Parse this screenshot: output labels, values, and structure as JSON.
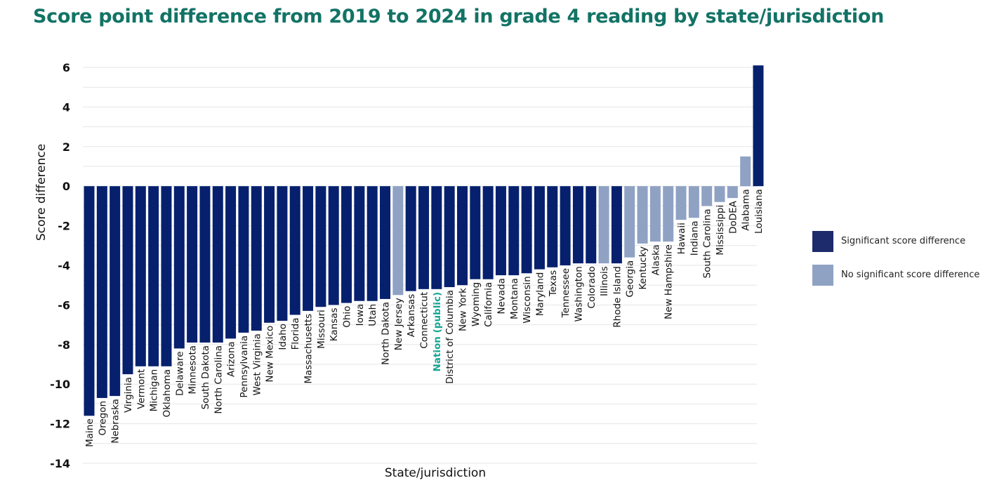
{
  "chart_data": {
    "type": "bar",
    "title": "Score point difference from 2019 to 2024 in grade 4 reading by state/jurisdiction",
    "xlabel": "State/jurisdiction",
    "ylabel": "Score difference",
    "ylim": [
      -14,
      6
    ],
    "yticks": [
      6,
      4,
      2,
      0,
      -2,
      -4,
      -6,
      -8,
      -10,
      -12,
      -14
    ],
    "grid": true,
    "legend_position": "right",
    "colors": {
      "significant": "#06206e",
      "not_significant": "#8fa2c4",
      "highlight_label": "#18a595"
    },
    "legend": [
      {
        "label": "Significant score difference",
        "key": "significant",
        "color": "#1d2a6b"
      },
      {
        "label": "No significant score difference",
        "key": "not_significant",
        "color": "#8fa2c4"
      }
    ],
    "categories": [
      "Maine",
      "Oregon",
      "Nebraska",
      "Virginia",
      "Vermont",
      "Michigan",
      "Oklahoma",
      "Delaware",
      "Minnesota",
      "South Dakota",
      "North Carolina",
      "Arizona",
      "Pennsylvania",
      "West Virginia",
      "New Mexico",
      "Idaho",
      "Florida",
      "Massachusetts",
      "Missouri",
      "Kansas",
      "Ohio",
      "Iowa",
      "Utah",
      "North Dakota",
      "New Jersey",
      "Arkansas",
      "Connecticut",
      "Nation (public)",
      "District of Columbia",
      "New York",
      "Wyoming",
      "California",
      "Nevada",
      "Montana",
      "Wisconsin",
      "Maryland",
      "Texas",
      "Tennessee",
      "Washington",
      "Colorado",
      "Illinois",
      "Rhode Island",
      "Georgia",
      "Kentucky",
      "Alaska",
      "New Hampshire",
      "Hawaii",
      "Indiana",
      "South Carolina",
      "Mississippi",
      "DoDEA",
      "Alabama",
      "Louisiana"
    ],
    "values": [
      -11.6,
      -10.7,
      -10.6,
      -9.5,
      -9.1,
      -9.1,
      -9.1,
      -8.2,
      -7.9,
      -7.9,
      -7.9,
      -7.7,
      -7.4,
      -7.3,
      -6.9,
      -6.8,
      -6.5,
      -6.3,
      -6.1,
      -6.0,
      -5.9,
      -5.8,
      -5.8,
      -5.7,
      -5.5,
      -5.3,
      -5.2,
      -5.2,
      -5.1,
      -5.0,
      -4.7,
      -4.7,
      -4.5,
      -4.5,
      -4.4,
      -4.2,
      -4.1,
      -4.0,
      -3.9,
      -3.9,
      -3.9,
      -3.9,
      -3.6,
      -2.9,
      -2.8,
      -2.8,
      -1.7,
      -1.6,
      -1.0,
      -0.8,
      -0.6,
      1.5,
      6.1
    ],
    "significant": [
      true,
      true,
      true,
      true,
      true,
      true,
      true,
      true,
      true,
      true,
      true,
      true,
      true,
      true,
      true,
      true,
      true,
      true,
      true,
      true,
      true,
      true,
      true,
      true,
      false,
      true,
      true,
      true,
      true,
      true,
      true,
      true,
      true,
      true,
      true,
      true,
      true,
      true,
      true,
      true,
      false,
      true,
      false,
      false,
      false,
      false,
      false,
      false,
      false,
      false,
      false,
      false,
      true
    ],
    "highlight_category": "Nation (public)"
  }
}
